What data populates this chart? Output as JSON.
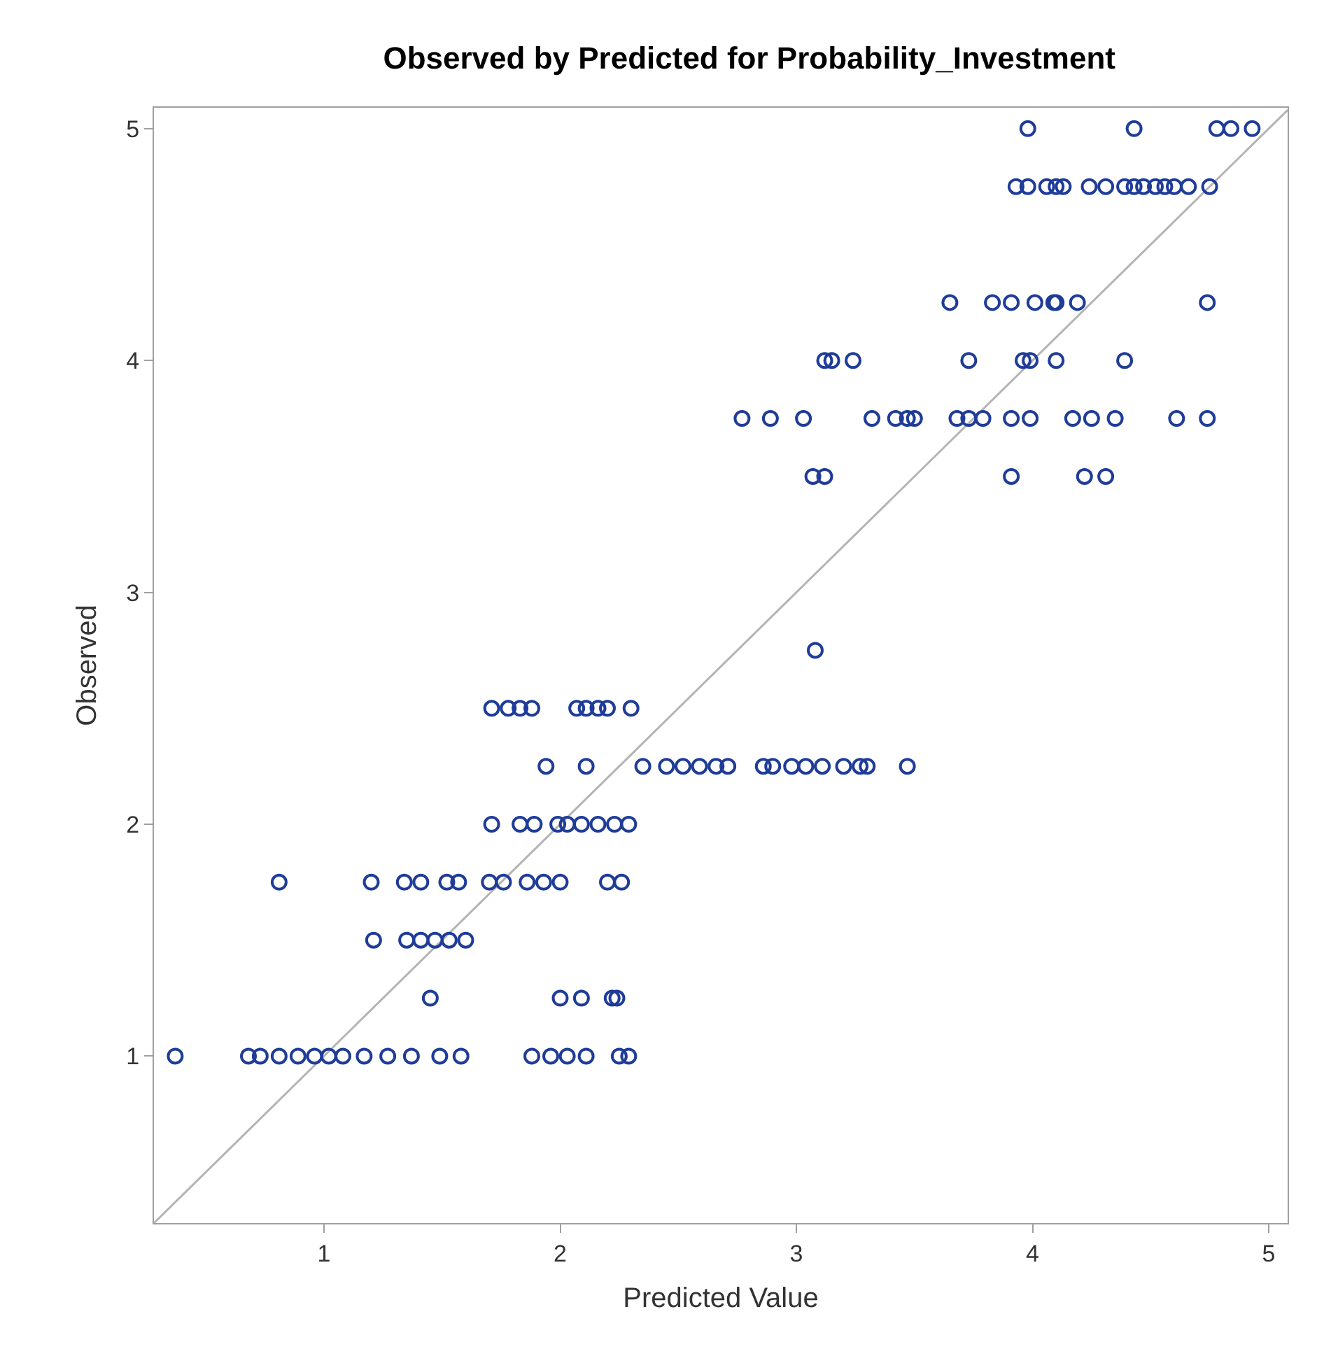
{
  "chart_data": {
    "type": "scatter",
    "title": "Observed by Predicted for Probability_Investment",
    "xlabel": "Predicted Value",
    "ylabel": "Observed",
    "xlim": [
      0.28,
      5.08
    ],
    "ylim": [
      0.28,
      5.09
    ],
    "xticks": [
      1,
      2,
      3,
      4,
      5
    ],
    "yticks": [
      1,
      2,
      3,
      4,
      5
    ],
    "series": [
      {
        "color": "#1f3c99",
        "marker": "circle",
        "x": [
          3.98,
          4.43,
          4.78,
          4.84,
          4.93,
          3.93,
          3.98,
          4.06,
          4.1,
          4.13,
          4.24,
          4.31,
          4.39,
          4.43,
          4.47,
          4.52,
          4.56,
          4.6,
          4.66,
          4.75,
          3.65,
          3.83,
          3.91,
          4.01,
          4.09,
          4.1,
          4.19,
          4.74,
          3.12,
          3.15,
          3.24,
          3.73,
          3.96,
          3.99,
          4.1,
          4.39,
          2.77,
          2.89,
          3.03,
          3.32,
          3.42,
          3.47,
          3.5,
          3.68,
          3.73,
          3.79,
          3.91,
          3.99,
          4.17,
          4.25,
          4.35,
          4.61,
          4.74,
          3.07,
          3.12,
          3.91,
          4.22,
          4.31,
          3.08,
          1.71,
          1.78,
          1.83,
          1.88,
          2.07,
          2.11,
          2.16,
          2.2,
          2.3,
          1.94,
          2.11,
          2.35,
          2.45,
          2.52,
          2.59,
          2.66,
          2.71,
          2.86,
          2.9,
          2.98,
          3.04,
          3.11,
          3.2,
          3.27,
          3.3,
          3.47,
          1.71,
          1.83,
          1.89,
          1.99,
          2.03,
          2.09,
          2.16,
          2.23,
          2.29,
          0.81,
          1.2,
          1.34,
          1.41,
          1.52,
          1.57,
          1.7,
          1.76,
          1.86,
          1.93,
          2.0,
          2.2,
          2.26,
          1.21,
          1.35,
          1.41,
          1.47,
          1.53,
          1.6,
          1.45,
          2.0,
          2.09,
          2.22,
          2.24,
          0.37,
          0.68,
          0.73,
          0.81,
          0.89,
          0.96,
          1.02,
          1.08,
          1.17,
          1.27,
          1.37,
          1.49,
          1.58,
          1.88,
          1.96,
          2.03,
          2.11,
          2.25,
          2.29
        ],
        "values": [
          5,
          5,
          5,
          5,
          5,
          4.75,
          4.75,
          4.75,
          4.75,
          4.75,
          4.75,
          4.75,
          4.75,
          4.75,
          4.75,
          4.75,
          4.75,
          4.75,
          4.75,
          4.75,
          4.25,
          4.25,
          4.25,
          4.25,
          4.25,
          4.25,
          4.25,
          4.25,
          4,
          4,
          4,
          4,
          4,
          4,
          4,
          4,
          3.75,
          3.75,
          3.75,
          3.75,
          3.75,
          3.75,
          3.75,
          3.75,
          3.75,
          3.75,
          3.75,
          3.75,
          3.75,
          3.75,
          3.75,
          3.75,
          3.75,
          3.5,
          3.5,
          3.5,
          3.5,
          3.5,
          2.75,
          2.5,
          2.5,
          2.5,
          2.5,
          2.5,
          2.5,
          2.5,
          2.5,
          2.5,
          2.25,
          2.25,
          2.25,
          2.25,
          2.25,
          2.25,
          2.25,
          2.25,
          2.25,
          2.25,
          2.25,
          2.25,
          2.25,
          2.25,
          2.25,
          2.25,
          2.25,
          2,
          2,
          2,
          2,
          2,
          2,
          2,
          2,
          2,
          1.75,
          1.75,
          1.75,
          1.75,
          1.75,
          1.75,
          1.75,
          1.75,
          1.75,
          1.75,
          1.75,
          1.75,
          1.75,
          1.5,
          1.5,
          1.5,
          1.5,
          1.5,
          1.5,
          1.25,
          1.25,
          1.25,
          1.25,
          1.25,
          1,
          1,
          1,
          1,
          1,
          1,
          1,
          1,
          1,
          1,
          1,
          1,
          1,
          1,
          1,
          1,
          1,
          1,
          1
        ]
      },
      {
        "type": "line",
        "color": "#b4b4b4",
        "line_style": "solid",
        "x": [
          0.28,
          5.08
        ],
        "values": [
          0.28,
          5.08
        ]
      }
    ]
  }
}
